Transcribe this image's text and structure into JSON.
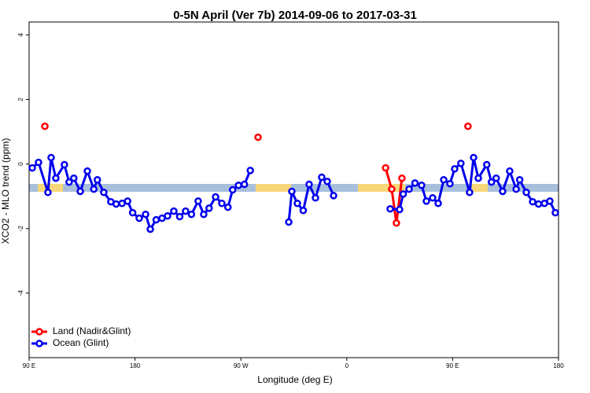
{
  "chart_data": {
    "type": "line",
    "title": "0-5N April (Ver 7b)   2014-09-06 to 2017-03-31",
    "x_label": "Longitude (deg E)",
    "y_label": "XCO2 - MLO trend (ppm)",
    "xlim": [
      90,
      540
    ],
    "xticks": [
      {
        "value": 90,
        "label": "90 E"
      },
      {
        "value": 180,
        "label": "180"
      },
      {
        "value": 270,
        "label": "90 W"
      },
      {
        "value": 360,
        "label": "0"
      },
      {
        "value": 450,
        "label": "90 E"
      },
      {
        "value": 540,
        "label": "180"
      }
    ],
    "ylim": [
      -6,
      4.4
    ],
    "yticks": [
      -4,
      -2,
      0,
      2,
      4
    ],
    "legend": "bottom-left",
    "series": [
      {
        "name": "Land (Nadir&Glint)",
        "color": "#ff0000",
        "x": [
          103.4,
          null,
          284.6,
          null,
          393,
          398.2,
          402.2,
          406.9,
          null,
          463
        ],
        "values": [
          1.17,
          null,
          0.83,
          null,
          -0.12,
          -0.78,
          -1.83,
          -0.44,
          null,
          1.17
        ]
      },
      {
        "name": "Ocean (Glint)",
        "color": "#0000ee",
        "x": [
          92.7,
          98,
          106,
          108.7,
          112.7,
          120,
          124,
          128,
          133.5,
          139.5,
          145,
          148,
          153.5,
          159.5,
          164,
          169,
          173.7,
          178,
          183.6,
          189,
          193,
          198,
          203,
          207.7,
          213,
          218,
          223,
          228,
          233.7,
          238.4,
          243,
          248.5,
          253.8,
          259,
          263,
          268,
          273,
          278,
          null,
          310.7,
          313.3,
          318,
          323,
          328,
          333.4,
          338.7,
          343.4,
          348.8,
          null,
          396.9,
          404.9,
          408,
          413,
          418,
          423.6,
          427.7,
          433,
          437.7,
          442.4,
          447.7,
          451.7,
          457,
          464.4,
          467.8,
          471.8,
          479,
          483,
          487,
          492.5,
          498.5,
          504,
          507,
          512.6,
          518,
          523,
          528,
          532.6,
          537.3
        ],
        "values": [
          -0.12,
          0.05,
          -0.88,
          0.2,
          -0.44,
          -0.02,
          -0.56,
          -0.44,
          -0.85,
          -0.22,
          -0.78,
          -0.49,
          -0.88,
          -1.17,
          -1.24,
          -1.22,
          -1.15,
          -1.51,
          -1.68,
          -1.56,
          -2.02,
          -1.73,
          -1.68,
          -1.61,
          -1.46,
          -1.63,
          -1.46,
          -1.56,
          -1.15,
          -1.56,
          -1.37,
          -1.02,
          -1.22,
          -1.34,
          -0.8,
          -0.66,
          -0.63,
          -0.2,
          null,
          -1.8,
          -0.85,
          -1.22,
          -1.44,
          -0.63,
          -1.05,
          -0.41,
          -0.54,
          -0.98,
          null,
          -1.39,
          -1.41,
          -0.93,
          -0.78,
          -0.59,
          -0.66,
          -1.15,
          -1.05,
          -1.22,
          -0.49,
          -0.61,
          -0.15,
          0.02,
          -0.88,
          0.2,
          -0.44,
          -0.02,
          -0.56,
          -0.44,
          -0.85,
          -0.22,
          -0.78,
          -0.49,
          -0.88,
          -1.17,
          -1.24,
          -1.22,
          -1.15,
          -1.51
        ]
      }
    ]
  }
}
